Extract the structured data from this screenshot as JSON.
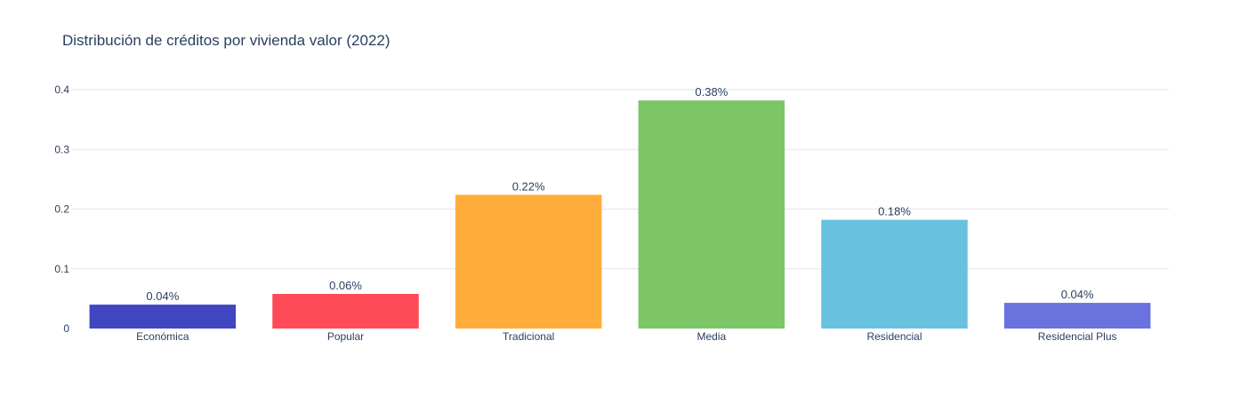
{
  "chart_data": {
    "type": "bar",
    "title": "Distribución de créditos por vivienda valor (2022)",
    "xlabel": "",
    "ylabel": "",
    "categories": [
      "Económica",
      "Popular",
      "Tradicional",
      "Media",
      "Residencial",
      "Residencial Plus"
    ],
    "values": [
      0.04,
      0.058,
      0.224,
      0.382,
      0.182,
      0.043
    ],
    "data_labels": [
      "0.04%",
      "0.06%",
      "0.22%",
      "0.38%",
      "0.18%",
      "0.04%"
    ],
    "colors": [
      "#3f46c0",
      "#ff4b57",
      "#ffad3a",
      "#7dc667",
      "#68c2df",
      "#6a72de"
    ],
    "ylim": [
      0,
      0.4
    ],
    "yticks": [
      0,
      0.1,
      0.2,
      0.3,
      0.4
    ],
    "ytick_labels": [
      "0",
      "0.1",
      "0.2",
      "0.3",
      "0.4"
    ],
    "grid": true,
    "legend": "none"
  }
}
